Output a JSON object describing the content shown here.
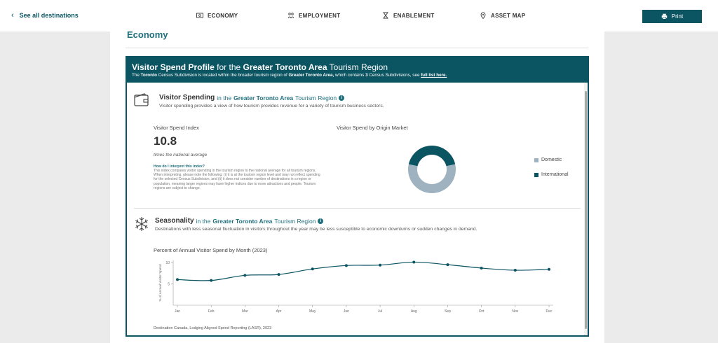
{
  "nav": {
    "back_label": "See all destinations",
    "items": [
      {
        "label": "ECONOMY",
        "icon": "money-icon"
      },
      {
        "label": "EMPLOYMENT",
        "icon": "people-icon"
      },
      {
        "label": "ENABLEMENT",
        "icon": "hourglass-icon"
      },
      {
        "label": "ASSET MAP",
        "icon": "map-pin-icon"
      }
    ],
    "print_label": "Print"
  },
  "page": {
    "title": "Economy"
  },
  "card": {
    "title_bold1": "Visitor Spend Profile",
    "title_mid": " for the ",
    "title_bold2": "Greater Toronto Area",
    "title_end": " Tourism Region",
    "sub_pre": "The ",
    "sub_city": "Toronto",
    "sub_mid": " Census Subdivision is located within the broader tourism region of ",
    "sub_region": "Greater Toronto Area,",
    "sub_mid2": " which contains ",
    "sub_count": "3",
    "sub_mid3": " Census Subdivisions, see ",
    "sub_link": "full list here."
  },
  "visitor_spending": {
    "title": "Visitor Spending",
    "in": "in the",
    "region": "Greater Toronto Area",
    "suffix": "Tourism Region",
    "info": "i",
    "description": "Visitor spending provides a view of how tourism provides revenue for a variety of tourism business sectors.",
    "index_label": "Visitor Spend Index",
    "index_value": "10.8",
    "index_note": "times the national average",
    "how_q": "How do I interpret this index?",
    "how_a": "This index compares visitor spending in the tourism region to the national average for all tourism regions. When interpreting, please note the following: (i) it is at the tourism region level and may not reflect spending for the selected Census Subdivision, and (ii) it does not consider number of destinations in a region or population, meaning larger regions may have higher indices due to more attractions and people. Tourism regions are subject to change.",
    "origin_label": "Visitor Spend by Origin Market",
    "legend": [
      {
        "label": "Domestic",
        "color": "#9fb2bf"
      },
      {
        "label": "International",
        "color": "#0b5462"
      }
    ]
  },
  "seasonality": {
    "title": "Seasonality",
    "in": "in the",
    "region": "Greater Toronto Area",
    "suffix": "Tourism Region",
    "info": "i",
    "description": "Destinations with less seasonal fluctuation in visitors throughout the year may be less susceptible to economic downturns or sudden changes in demand.",
    "chart_title": "Percent of Annual Visitor Spend by Month (2023)",
    "source": "Destination Canada, Lodging Aligned Spend Reporting (LASR), 2023"
  },
  "chart_data": [
    {
      "type": "pie",
      "title": "Visitor Spend by Origin Market",
      "categories": [
        "Domestic",
        "International"
      ],
      "values": [
        57,
        43
      ],
      "colors": [
        "#9fb2bf",
        "#0b5462"
      ],
      "donut": true,
      "legend_position": "right"
    },
    {
      "type": "line",
      "title": "Percent of Annual Visitor Spend by Month (2023)",
      "ylabel": "% of Annual Visitor Spend",
      "xlabel": "",
      "categories": [
        "Jan",
        "Feb",
        "Mar",
        "Apr",
        "May",
        "Jun",
        "Jul",
        "Aug",
        "Sep",
        "Oct",
        "Nov",
        "Dec"
      ],
      "values": [
        6.0,
        5.8,
        7.0,
        7.2,
        8.5,
        9.3,
        9.4,
        10.1,
        9.5,
        8.7,
        8.2,
        8.4
      ],
      "yticks": [
        5,
        10
      ],
      "ylim": [
        0,
        10.5
      ],
      "color": "#0b5462"
    }
  ]
}
